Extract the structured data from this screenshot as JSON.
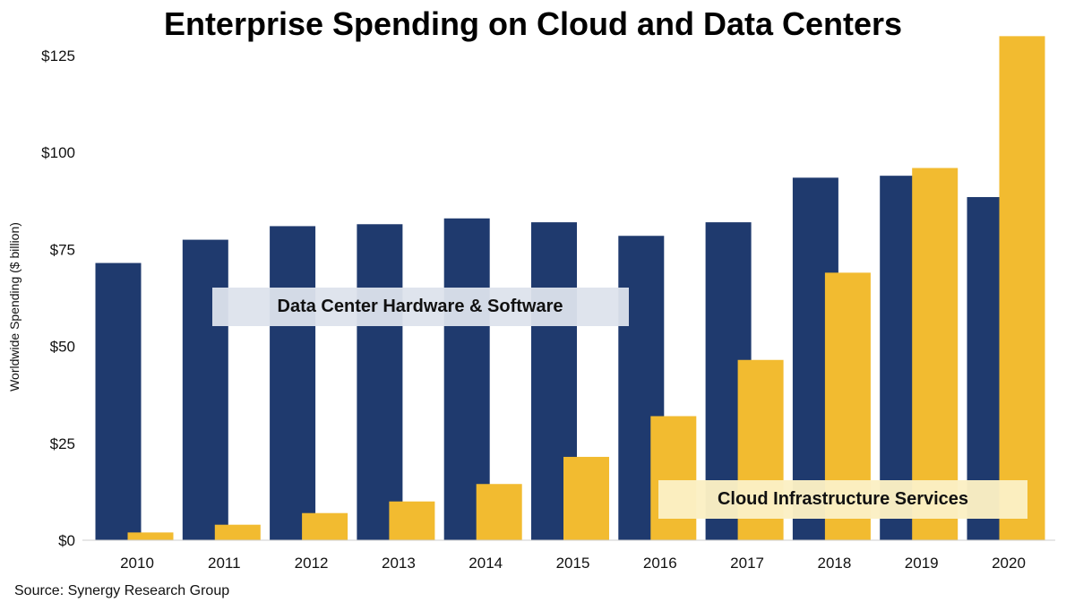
{
  "chart_data": {
    "type": "bar",
    "title": "Enterprise Spending on Cloud and Data Centers",
    "ylabel": "Worldwide Spending ($ billion)",
    "xlabel": "",
    "ylim": [
      0,
      125
    ],
    "yticks": [
      "$0",
      "$25",
      "$50",
      "$75",
      "$100",
      "$125"
    ],
    "ytick_values": [
      0,
      25,
      50,
      75,
      100,
      125
    ],
    "categories": [
      "2010",
      "2011",
      "2012",
      "2013",
      "2014",
      "2015",
      "2016",
      "2017",
      "2018",
      "2019",
      "2020"
    ],
    "series": [
      {
        "name": "Data Center Hardware & Software",
        "color": "#1f3a6e",
        "values": [
          71.5,
          77.5,
          81,
          81.5,
          83,
          82,
          78.5,
          82,
          93.5,
          94,
          88.5
        ]
      },
      {
        "name": "Cloud Infrastructure Services",
        "color": "#f2bb30",
        "values": [
          2,
          4,
          7,
          10,
          14.5,
          21.5,
          32,
          46.5,
          69,
          96,
          130
        ]
      }
    ],
    "grid": false,
    "legend": "inline labels"
  },
  "source": "Source: Synergy Research Group"
}
